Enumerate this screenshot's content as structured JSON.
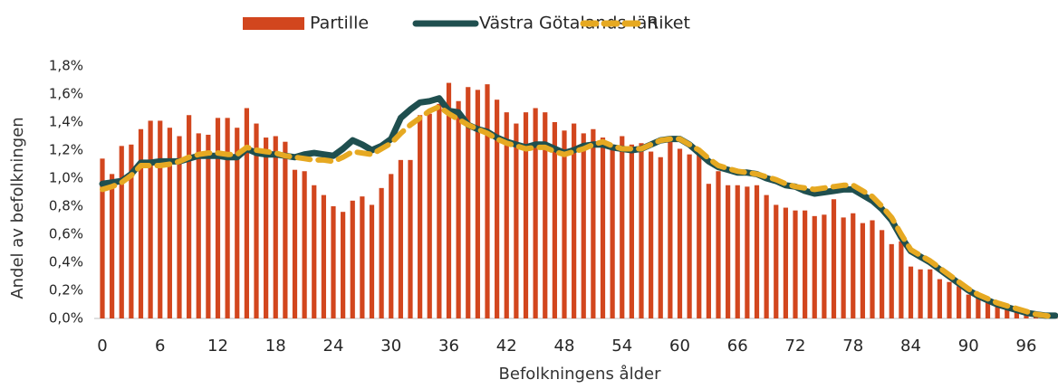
{
  "chart_data": {
    "type": "bar",
    "xlabel": "Befolkningens ålder",
    "ylabel": "Andel av befolkningen",
    "categories": [
      0,
      null,
      null,
      null,
      null,
      null,
      6,
      null,
      null,
      null,
      null,
      null,
      12,
      null,
      null,
      null,
      null,
      null,
      18,
      null,
      null,
      null,
      null,
      null,
      24,
      null,
      null,
      null,
      null,
      null,
      30,
      null,
      null,
      null,
      null,
      null,
      36,
      null,
      null,
      null,
      null,
      null,
      42,
      null,
      null,
      null,
      null,
      null,
      48,
      null,
      null,
      null,
      null,
      null,
      54,
      null,
      null,
      null,
      null,
      null,
      60,
      null,
      null,
      null,
      null,
      null,
      66,
      null,
      null,
      null,
      null,
      null,
      72,
      null,
      null,
      null,
      null,
      null,
      78,
      null,
      null,
      null,
      null,
      null,
      84,
      null,
      null,
      null,
      null,
      null,
      90,
      null,
      null,
      null,
      null,
      null,
      96,
      null,
      null,
      null
    ],
    "ylim": [
      0,
      1.8
    ],
    "yticks": [
      {
        "value": 0,
        "label": "0,0%"
      },
      {
        "value": 0.2,
        "label": "0,2%"
      },
      {
        "value": 0.4,
        "label": "0,4%"
      },
      {
        "value": 0.6,
        "label": "0,6%"
      },
      {
        "value": 0.8,
        "label": "0,8%"
      },
      {
        "value": 1.0,
        "label": "1,0%"
      },
      {
        "value": 1.2,
        "label": "1,2%"
      },
      {
        "value": 1.4,
        "label": "1,4%"
      },
      {
        "value": 1.6,
        "label": "1,6%"
      },
      {
        "value": 1.8,
        "label": "1,8%"
      }
    ],
    "series": [
      {
        "name": "Partille",
        "type": "bar",
        "color": "#d2461e",
        "values": [
          1.14,
          1.03,
          1.23,
          1.24,
          1.35,
          1.41,
          1.41,
          1.36,
          1.3,
          1.45,
          1.32,
          1.31,
          1.43,
          1.43,
          1.36,
          1.5,
          1.39,
          1.29,
          1.3,
          1.26,
          1.06,
          1.05,
          0.95,
          0.88,
          0.8,
          0.76,
          0.84,
          0.87,
          0.81,
          0.93,
          1.03,
          1.13,
          1.13,
          1.45,
          1.46,
          1.53,
          1.68,
          1.55,
          1.65,
          1.63,
          1.67,
          1.56,
          1.47,
          1.39,
          1.47,
          1.5,
          1.47,
          1.4,
          1.34,
          1.39,
          1.32,
          1.35,
          1.29,
          1.24,
          1.3,
          1.24,
          1.25,
          1.19,
          1.15,
          1.27,
          1.21,
          1.17,
          1.17,
          0.96,
          1.05,
          0.95,
          0.95,
          0.94,
          0.95,
          0.88,
          0.81,
          0.79,
          0.77,
          0.77,
          0.73,
          0.74,
          0.85,
          0.72,
          0.75,
          0.68,
          0.7,
          0.63,
          0.53,
          0.55,
          0.37,
          0.35,
          0.35,
          0.28,
          0.26,
          0.23,
          0.17,
          0.16,
          0.13,
          0.1,
          0.08,
          0.06,
          0.05,
          0.03,
          0.02,
          0.01
        ]
      },
      {
        "name": "Västra Götalands län",
        "type": "line",
        "color": "#1f4f4f",
        "values": [
          0.96,
          0.97,
          0.98,
          1.03,
          1.11,
          1.11,
          1.12,
          1.12,
          1.12,
          1.14,
          1.16,
          1.16,
          1.16,
          1.15,
          1.15,
          1.21,
          1.18,
          1.17,
          1.17,
          1.16,
          1.15,
          1.17,
          1.18,
          1.17,
          1.16,
          1.21,
          1.27,
          1.24,
          1.2,
          1.23,
          1.28,
          1.43,
          1.49,
          1.54,
          1.55,
          1.57,
          1.48,
          1.47,
          1.38,
          1.35,
          1.33,
          1.29,
          1.26,
          1.24,
          1.22,
          1.24,
          1.24,
          1.21,
          1.18,
          1.2,
          1.23,
          1.24,
          1.24,
          1.22,
          1.21,
          1.2,
          1.21,
          1.24,
          1.27,
          1.28,
          1.28,
          1.24,
          1.18,
          1.12,
          1.08,
          1.06,
          1.04,
          1.04,
          1.03,
          1.0,
          0.98,
          0.95,
          0.94,
          0.91,
          0.89,
          0.9,
          0.91,
          0.92,
          0.92,
          0.88,
          0.84,
          0.78,
          0.7,
          0.58,
          0.48,
          0.44,
          0.4,
          0.35,
          0.3,
          0.25,
          0.2,
          0.16,
          0.13,
          0.1,
          0.08,
          0.06,
          0.04,
          0.03,
          0.02,
          0.02
        ]
      },
      {
        "name": "Riket",
        "type": "dashed-line",
        "color": "#e6a922",
        "values": [
          0.92,
          0.94,
          0.97,
          1.02,
          1.09,
          1.09,
          1.09,
          1.1,
          1.12,
          1.15,
          1.17,
          1.18,
          1.18,
          1.17,
          1.17,
          1.22,
          1.2,
          1.19,
          1.18,
          1.16,
          1.15,
          1.14,
          1.13,
          1.13,
          1.12,
          1.15,
          1.19,
          1.18,
          1.17,
          1.21,
          1.25,
          1.32,
          1.38,
          1.43,
          1.48,
          1.51,
          1.46,
          1.42,
          1.38,
          1.35,
          1.32,
          1.28,
          1.25,
          1.23,
          1.21,
          1.22,
          1.22,
          1.19,
          1.17,
          1.19,
          1.21,
          1.24,
          1.26,
          1.23,
          1.21,
          1.21,
          1.21,
          1.24,
          1.27,
          1.28,
          1.28,
          1.24,
          1.2,
          1.14,
          1.09,
          1.07,
          1.05,
          1.04,
          1.03,
          1.01,
          0.99,
          0.96,
          0.94,
          0.93,
          0.92,
          0.93,
          0.94,
          0.95,
          0.95,
          0.91,
          0.87,
          0.8,
          0.72,
          0.6,
          0.49,
          0.45,
          0.41,
          0.36,
          0.31,
          0.26,
          0.21,
          0.17,
          0.14,
          0.11,
          0.09,
          0.07,
          0.05,
          0.03,
          0.02,
          0.01
        ]
      }
    ],
    "legend": "top"
  }
}
